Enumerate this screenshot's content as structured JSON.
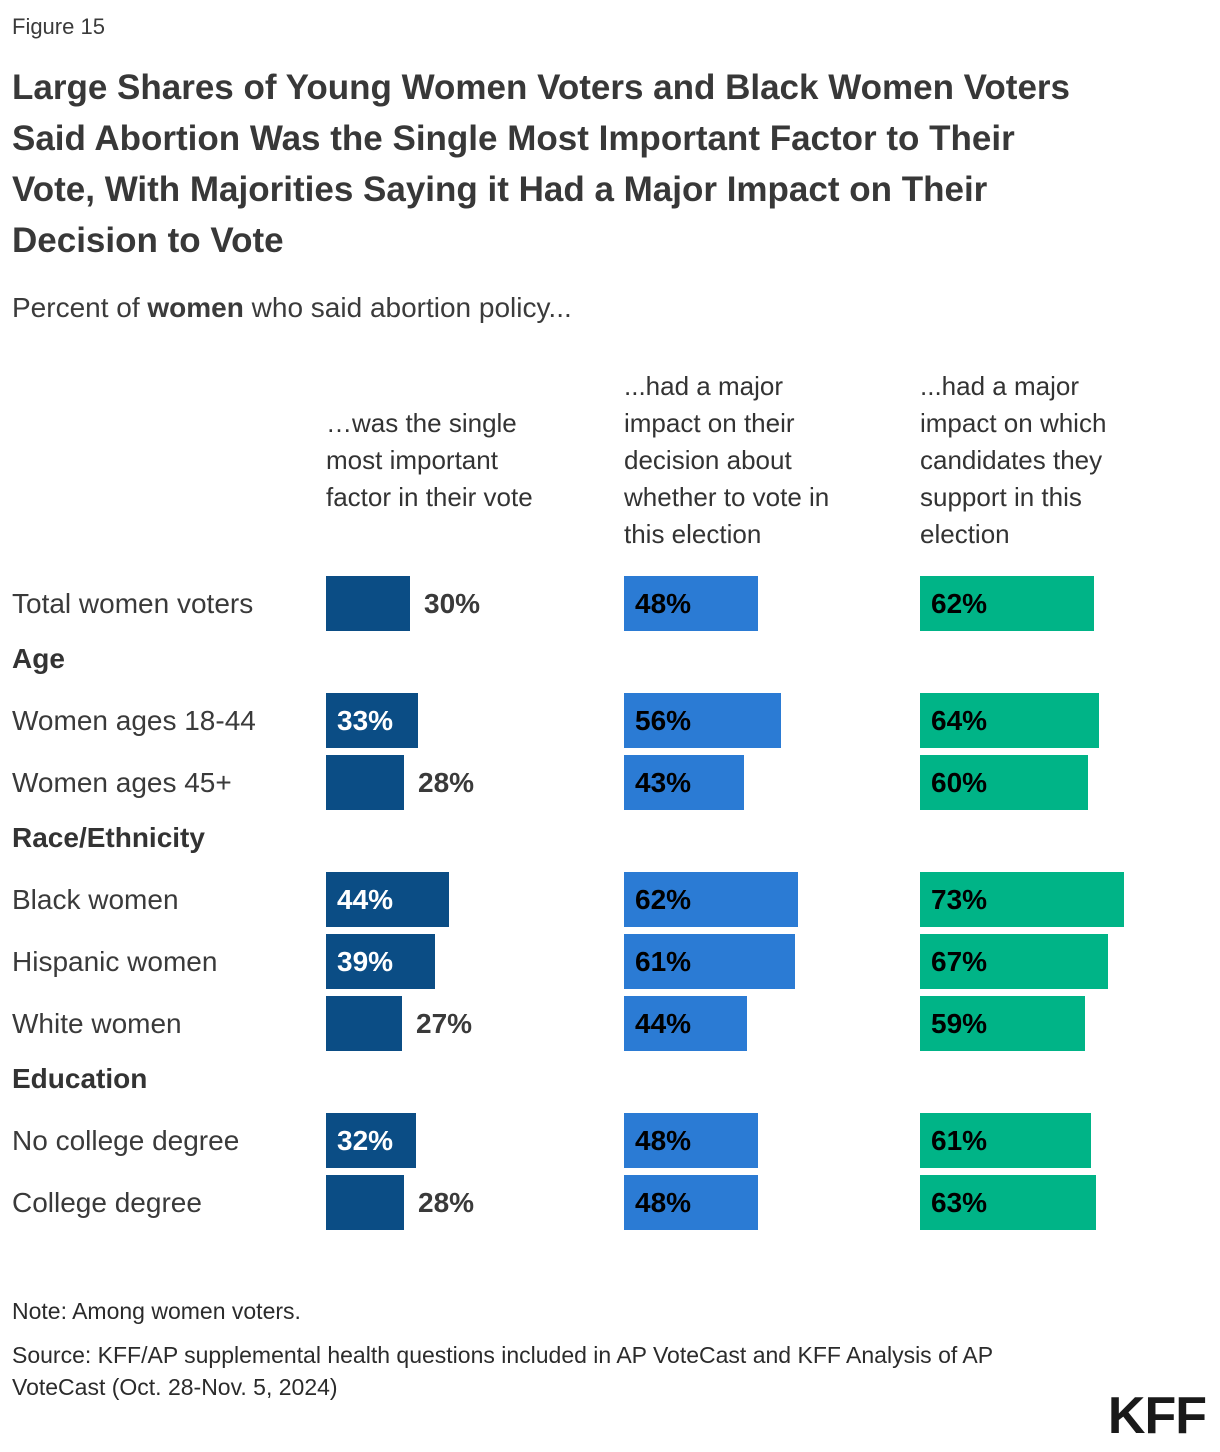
{
  "figure_label": "Figure 15",
  "title": "Large Shares of Young Women Voters and Black Women Voters\nSaid Abortion Was the Single Most Important Factor to Their\nVote, With Majorities Saying it Had a Major Impact on Their\nDecision to Vote",
  "subtitle": {
    "prefix": "Percent of ",
    "bold": "women",
    "suffix": " who said abortion policy..."
  },
  "columns": [
    {
      "header": "…was the single\nmost important\nfactor in their vote",
      "color": "#0B4D85"
    },
    {
      "header": "...had a major\nimpact on their\ndecision about\nwhether to vote in\nthis election",
      "color": "#2B7BD4"
    },
    {
      "header": "...had a major\nimpact on which\ncandidates they\nsupport in this\nelection",
      "color": "#00B487"
    }
  ],
  "rows": [
    {
      "type": "data",
      "label": "Total women voters",
      "values": [
        30,
        48,
        62
      ]
    },
    {
      "type": "section",
      "label": "Age"
    },
    {
      "type": "data",
      "label": "Women ages 18-44",
      "values": [
        33,
        56,
        64
      ]
    },
    {
      "type": "data",
      "label": "Women ages 45+",
      "values": [
        28,
        43,
        60
      ]
    },
    {
      "type": "section",
      "label": "Race/Ethnicity"
    },
    {
      "type": "data",
      "label": "Black women",
      "values": [
        44,
        62,
        73
      ]
    },
    {
      "type": "data",
      "label": "Hispanic women",
      "values": [
        39,
        61,
        67
      ]
    },
    {
      "type": "data",
      "label": "White women",
      "values": [
        27,
        44,
        59
      ]
    },
    {
      "type": "section",
      "label": "Education"
    },
    {
      "type": "data",
      "label": "No college degree",
      "values": [
        32,
        48,
        61
      ]
    },
    {
      "type": "data",
      "label": "College degree",
      "values": [
        28,
        48,
        63
      ]
    }
  ],
  "note": "Note: Among women voters.",
  "source": "Source: KFF/AP supplemental health questions included in AP VoteCast and KFF Analysis of AP VoteCast (Oct. 28-Nov. 5, 2024)",
  "logo": "KFF",
  "chart_data": {
    "type": "bar",
    "orientation": "horizontal",
    "title": "Large Shares of Young Women Voters and Black Women Voters Said Abortion Was the Single Most Important Factor to Their Vote, With Majorities Saying it Had a Major Impact on Their Decision to Vote",
    "subtitle": "Percent of women who said abortion policy...",
    "categories": [
      "Total women voters",
      "Women ages 18-44",
      "Women ages 45+",
      "Black women",
      "Hispanic women",
      "White women",
      "No college degree",
      "College degree"
    ],
    "category_groups": [
      {
        "label": "Age",
        "categories": [
          "Women ages 18-44",
          "Women ages 45+"
        ]
      },
      {
        "label": "Race/Ethnicity",
        "categories": [
          "Black women",
          "Hispanic women",
          "White women"
        ]
      },
      {
        "label": "Education",
        "categories": [
          "No college degree",
          "College degree"
        ]
      }
    ],
    "series": [
      {
        "name": "…was the single most important factor in their vote",
        "color": "#0B4D85",
        "values": [
          30,
          33,
          28,
          44,
          39,
          27,
          32,
          28
        ]
      },
      {
        "name": "...had a major impact on their decision about whether to vote in this election",
        "color": "#2B7BD4",
        "values": [
          48,
          56,
          43,
          62,
          61,
          44,
          48,
          48
        ]
      },
      {
        "name": "...had a major impact on which candidates they support in this election",
        "color": "#00B487",
        "values": [
          62,
          64,
          60,
          73,
          67,
          59,
          61,
          63
        ]
      }
    ],
    "value_unit": "%",
    "xlim": [
      0,
      100
    ],
    "grid": false,
    "legend_position": "column-headers",
    "value_labels": "on-bars",
    "note": "Note: Among women voters.",
    "source": "Source: KFF/AP supplemental health questions included in AP VoteCast and KFF Analysis of AP VoteCast (Oct. 28-Nov. 5, 2024)"
  }
}
